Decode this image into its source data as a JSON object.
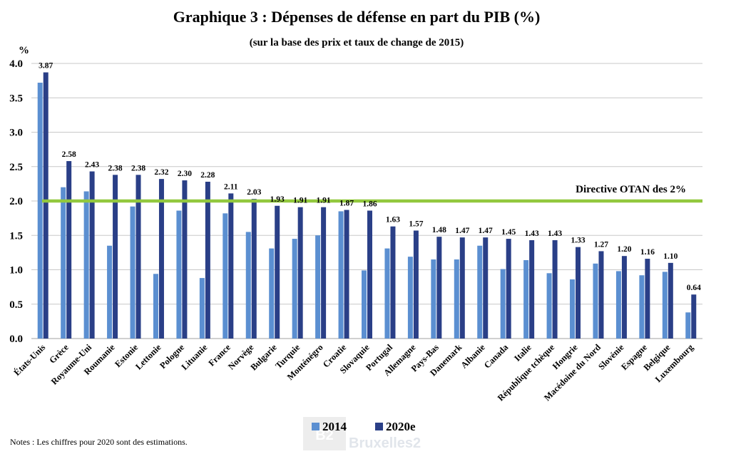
{
  "chart_data": {
    "type": "bar",
    "title": "Graphique 3 : Dépenses de défense en part du PIB (%)",
    "subtitle": "(sur la base des prix et taux de change de 2015)",
    "ylabel": "%",
    "ylim": [
      0,
      4.0
    ],
    "yticks": [
      "0.0",
      "0.5",
      "1.0",
      "1.5",
      "2.0",
      "2.5",
      "3.0",
      "3.5",
      "4.0"
    ],
    "grid": true,
    "legend_position": "bottom",
    "categories": [
      "États-Unis",
      "Grèce",
      "Royaume-Uni",
      "Roumanie",
      "Estonie",
      "Lettonie",
      "Pologne",
      "Lituanie",
      "France",
      "Norvège",
      "Bulgarie",
      "Turquie",
      "Monténégro",
      "Croatie",
      "Slovaquie",
      "Portugal",
      "Allemagne",
      "Pays-Bas",
      "Danemark",
      "Albanie",
      "Canada",
      "Italie",
      "République tchèque",
      "Hongrie",
      "Macédoine du Nord",
      "Slovénie",
      "Espagne",
      "Belgique",
      "Luxembourg"
    ],
    "series": [
      {
        "name": "2014",
        "color": "#5b8fd1",
        "values": [
          3.72,
          2.2,
          2.14,
          1.35,
          1.92,
          0.94,
          1.86,
          0.88,
          1.82,
          1.55,
          1.31,
          1.45,
          1.5,
          1.85,
          0.99,
          1.31,
          1.19,
          1.15,
          1.15,
          1.35,
          1.01,
          1.14,
          0.95,
          0.86,
          1.09,
          0.98,
          0.92,
          0.97,
          0.38
        ]
      },
      {
        "name": "2020e",
        "color": "#2a3f87",
        "values": [
          3.87,
          2.58,
          2.43,
          2.38,
          2.38,
          2.32,
          2.3,
          2.28,
          2.11,
          2.03,
          1.93,
          1.91,
          1.91,
          1.87,
          1.86,
          1.63,
          1.57,
          1.48,
          1.47,
          1.47,
          1.45,
          1.43,
          1.43,
          1.33,
          1.27,
          1.2,
          1.16,
          1.1,
          0.64
        ],
        "labels": [
          "3.87",
          "2.58",
          "2.43",
          "2.38",
          "2.38",
          "2.32",
          "2.30",
          "2.28",
          "2.11",
          "2.03",
          "1.93",
          "1.91",
          "1.91",
          "1.87",
          "1.86",
          "1.63",
          "1.57",
          "1.48",
          "1.47",
          "1.47",
          "1.45",
          "1.43",
          "1.43",
          "1.33",
          "1.27",
          "1.20",
          "1.16",
          "1.10",
          "0.64"
        ]
      }
    ],
    "reference_line": {
      "value": 2.0,
      "label": "Directive OTAN des 2%",
      "color": "#92c83e"
    }
  },
  "note": "Notes : Les chiffres pour 2020 sont des estimations.",
  "watermark": {
    "logo": "B2",
    "text": "Bruxelles2"
  }
}
